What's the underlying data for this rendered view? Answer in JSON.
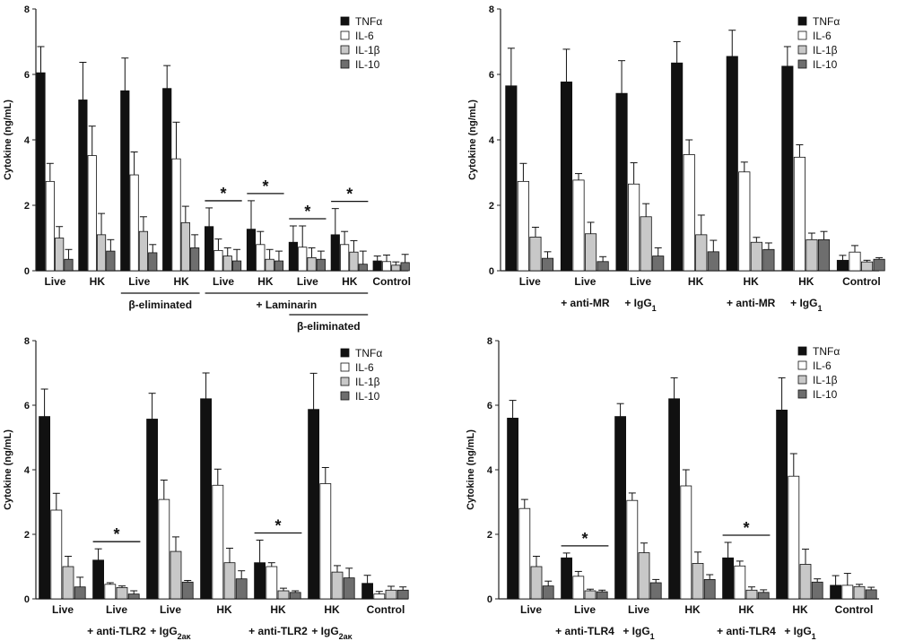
{
  "figure": {
    "series_names": [
      "TNFα",
      "IL-6",
      "IL-1β",
      "IL-10"
    ],
    "series_colors": [
      "#111111",
      "#ffffff",
      "#c8c8c8",
      "#6e6e6e"
    ]
  },
  "chart_data": [
    {
      "type": "bar",
      "panel": "top-left",
      "ylabel": "Cytokine (ng/mL)",
      "ylim": [
        0,
        8
      ],
      "yticks": [
        0,
        2,
        4,
        6,
        8
      ],
      "legend": "top-right",
      "categories": [
        "Live",
        "HK",
        "Live",
        "HK",
        "Live",
        "HK",
        "Live",
        "HK",
        "Control"
      ],
      "series": [
        {
          "name": "TNFα",
          "values": [
            6.05,
            5.22,
            5.5,
            5.57,
            1.35,
            1.27,
            0.87,
            1.1,
            0.3
          ],
          "errors": [
            0.8,
            1.15,
            1.0,
            0.7,
            0.57,
            0.87,
            0.5,
            0.8,
            0.15
          ]
        },
        {
          "name": "IL-6",
          "values": [
            2.73,
            3.52,
            2.93,
            3.42,
            0.62,
            0.8,
            0.72,
            0.8,
            0.28
          ],
          "errors": [
            0.55,
            0.9,
            0.7,
            1.12,
            0.35,
            0.4,
            0.65,
            0.4,
            0.2
          ]
        },
        {
          "name": "IL-1β",
          "values": [
            1.0,
            1.1,
            1.2,
            1.47,
            0.45,
            0.35,
            0.4,
            0.57,
            0.17
          ],
          "errors": [
            0.35,
            0.65,
            0.45,
            0.5,
            0.25,
            0.3,
            0.3,
            0.35,
            0.1
          ]
        },
        {
          "name": "IL-10",
          "values": [
            0.35,
            0.6,
            0.55,
            0.7,
            0.3,
            0.3,
            0.35,
            0.2,
            0.25
          ],
          "errors": [
            0.3,
            0.35,
            0.25,
            0.4,
            0.35,
            0.3,
            0.25,
            0.4,
            0.25
          ]
        }
      ],
      "significance": [
        {
          "group": 4,
          "label": "*"
        },
        {
          "group": 5,
          "label": "*"
        },
        {
          "group": 6,
          "label": "*"
        },
        {
          "group": 7,
          "label": "*"
        }
      ],
      "group_labels": [
        {
          "text": "β-eliminated",
          "from": 2,
          "to": 3,
          "row": 1
        },
        {
          "text": "+ Laminarin",
          "from": 4,
          "to": 7,
          "row": 1
        },
        {
          "text": "β-eliminated",
          "from": 6,
          "to": 7,
          "row": 2
        }
      ]
    },
    {
      "type": "bar",
      "panel": "top-right",
      "ylabel": "Cytokine (ng/mL)",
      "ylim": [
        0,
        8
      ],
      "yticks": [
        0,
        2,
        4,
        6,
        8
      ],
      "legend": "top-right",
      "categories": [
        "Live",
        "Live",
        "Live",
        "HK",
        "HK",
        "HK",
        "Control"
      ],
      "treatments": [
        "",
        "+ anti-MR",
        "+ IgG1",
        "",
        "+ anti-MR",
        "+ IgG1",
        ""
      ],
      "series": [
        {
          "name": "TNFα",
          "values": [
            5.65,
            5.77,
            5.42,
            6.35,
            6.55,
            6.25,
            0.32
          ],
          "errors": [
            1.15,
            1.0,
            1.0,
            0.65,
            0.8,
            0.6,
            0.15
          ]
        },
        {
          "name": "IL-6",
          "values": [
            2.73,
            2.77,
            2.65,
            3.55,
            3.02,
            3.47,
            0.57
          ],
          "errors": [
            0.55,
            0.2,
            0.65,
            0.45,
            0.3,
            0.38,
            0.2
          ]
        },
        {
          "name": "IL-1β",
          "values": [
            1.03,
            1.13,
            1.65,
            1.1,
            0.87,
            0.95,
            0.27
          ],
          "errors": [
            0.3,
            0.35,
            0.4,
            0.6,
            0.15,
            0.2,
            0.05
          ]
        },
        {
          "name": "IL-10",
          "values": [
            0.38,
            0.28,
            0.45,
            0.58,
            0.65,
            0.95,
            0.35
          ],
          "errors": [
            0.2,
            0.15,
            0.25,
            0.35,
            0.2,
            0.25,
            0.05
          ]
        }
      ],
      "significance": [],
      "group_labels": []
    },
    {
      "type": "bar",
      "panel": "bottom-left",
      "ylabel": "Cytokine (ng/mL)",
      "ylim": [
        0,
        8
      ],
      "yticks": [
        0,
        2,
        4,
        6,
        8
      ],
      "legend": "top-right",
      "categories": [
        "Live",
        "Live",
        "Live",
        "HK",
        "HK",
        "HK",
        "Control"
      ],
      "treatments": [
        "",
        "+ anti-TLR2",
        "+ IgG2aκ",
        "",
        "+ anti-TLR2",
        "+ IgG2aκ",
        ""
      ],
      "series": [
        {
          "name": "TNFα",
          "values": [
            5.65,
            1.2,
            5.57,
            6.2,
            1.12,
            5.87,
            0.48
          ],
          "errors": [
            0.85,
            0.35,
            0.8,
            0.8,
            0.7,
            1.12,
            0.25
          ]
        },
        {
          "name": "IL-6",
          "values": [
            2.75,
            0.45,
            3.08,
            3.52,
            1.0,
            3.57,
            0.15
          ],
          "errors": [
            0.52,
            0.05,
            0.6,
            0.5,
            0.12,
            0.5,
            0.08
          ]
        },
        {
          "name": "IL-1β",
          "values": [
            1.0,
            0.35,
            1.47,
            1.12,
            0.25,
            0.83,
            0.27
          ],
          "errors": [
            0.32,
            0.05,
            0.45,
            0.45,
            0.08,
            0.2,
            0.12
          ]
        },
        {
          "name": "IL-10",
          "values": [
            0.37,
            0.15,
            0.52,
            0.62,
            0.2,
            0.65,
            0.27
          ],
          "errors": [
            0.3,
            0.1,
            0.05,
            0.25,
            0.05,
            0.3,
            0.1
          ]
        }
      ],
      "significance": [
        {
          "group": 1,
          "label": "*"
        },
        {
          "group": 4,
          "label": "*"
        }
      ],
      "group_labels": []
    },
    {
      "type": "bar",
      "panel": "bottom-right",
      "ylabel": "Cytokine (ng/mL)",
      "ylim": [
        0,
        8
      ],
      "yticks": [
        0,
        2,
        4,
        6,
        8
      ],
      "legend": "top-right",
      "categories": [
        "Live",
        "Live",
        "Live",
        "HK",
        "HK",
        "HK",
        "Control"
      ],
      "treatments": [
        "",
        "+ anti-TLR4",
        "+ IgG1",
        "",
        "+ anti-TLR4",
        "+ IgG1",
        ""
      ],
      "series": [
        {
          "name": "TNFα",
          "values": [
            5.6,
            1.27,
            5.65,
            6.2,
            1.27,
            5.85,
            0.42
          ],
          "errors": [
            0.55,
            0.15,
            0.4,
            0.65,
            0.48,
            1.0,
            0.3
          ]
        },
        {
          "name": "IL-6",
          "values": [
            2.8,
            0.7,
            3.05,
            3.5,
            1.02,
            3.8,
            0.42
          ],
          "errors": [
            0.28,
            0.15,
            0.23,
            0.5,
            0.15,
            0.7,
            0.37
          ]
        },
        {
          "name": "IL-1β",
          "values": [
            1.0,
            0.25,
            1.43,
            1.1,
            0.27,
            1.07,
            0.38
          ],
          "errors": [
            0.32,
            0.05,
            0.3,
            0.35,
            0.1,
            0.47,
            0.07
          ]
        },
        {
          "name": "IL-10",
          "values": [
            0.4,
            0.22,
            0.5,
            0.6,
            0.2,
            0.52,
            0.28
          ],
          "errors": [
            0.15,
            0.05,
            0.1,
            0.15,
            0.08,
            0.1,
            0.08
          ]
        }
      ],
      "significance": [
        {
          "group": 1,
          "label": "*"
        },
        {
          "group": 4,
          "label": "*"
        }
      ],
      "group_labels": []
    }
  ]
}
